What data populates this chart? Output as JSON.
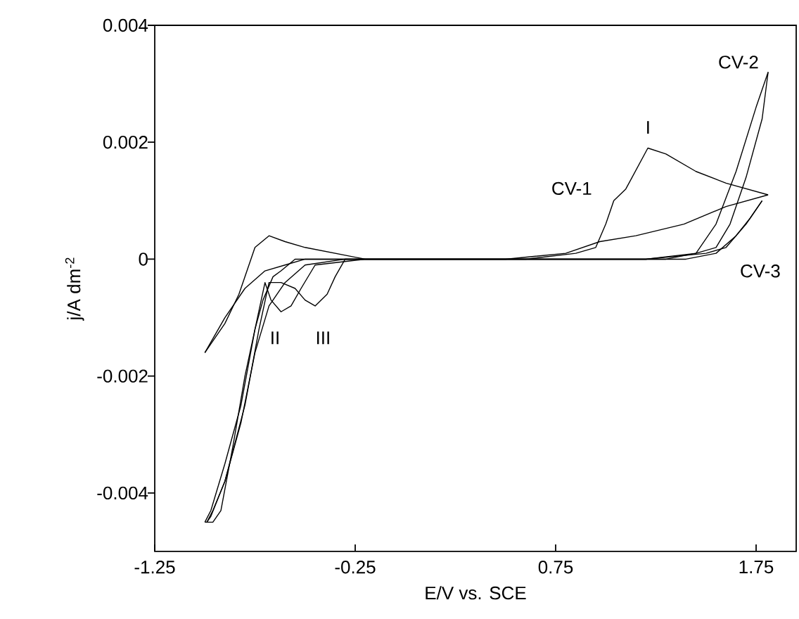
{
  "chart_data": {
    "type": "line",
    "xlabel": "E/V vs. SCE",
    "ylabel": "j/A dm$^{-2}$",
    "xlim": [
      -1.25,
      1.95
    ],
    "ylim": [
      -0.005,
      0.004
    ],
    "xticks": [
      -1.25,
      -0.25,
      0.75,
      1.75
    ],
    "yticks": [
      -0.004,
      -0.002,
      0,
      0.002,
      0.004
    ],
    "grid": false,
    "marker": "none",
    "line_style": "solid",
    "series": [
      {
        "color": "#000000",
        "x": [
          -1.0,
          -0.9,
          -0.83,
          -0.75,
          -0.68,
          -0.6,
          -0.5,
          -0.35,
          -0.2,
          0,
          0.3,
          0.6,
          0.85,
          0.95,
          1.0,
          1.04,
          1.1,
          1.21,
          1.3,
          1.45,
          1.6,
          1.81
        ],
        "values": [
          -0.0016,
          -0.0011,
          -0.0006,
          0.0002,
          0.0004,
          0.0003,
          0.0002,
          0.0001,
          0,
          0,
          0,
          0,
          0.0001,
          0.0002,
          0.0006,
          0.001,
          0.0012,
          0.0019,
          0.0018,
          0.0015,
          0.0013,
          0.0011
        ]
      },
      {
        "color": "#000000",
        "x": [
          -1.0,
          -0.9,
          -0.8,
          -0.7,
          -0.6,
          -0.5,
          -0.35,
          -0.1,
          0.2,
          0.5,
          0.8,
          0.97,
          1.15,
          1.39,
          1.6,
          1.81
        ],
        "values": [
          -0.0016,
          -0.001,
          -0.0005,
          -0.0002,
          -0.0001,
          0,
          0,
          0,
          0,
          0,
          0.0001,
          0.0003,
          0.0004,
          0.0006,
          0.0009,
          0.0011
        ]
      },
      {
        "color": "#000000",
        "x": [
          -1.0,
          -0.96,
          -0.92,
          -0.86,
          -0.8,
          -0.75,
          -0.71,
          -0.66,
          -0.62,
          -0.55,
          -0.45,
          -0.2,
          0,
          0.5,
          1.0,
          1.3,
          1.45,
          1.55,
          1.65,
          1.75,
          1.81
        ],
        "values": [
          -0.0045,
          -0.0045,
          -0.0043,
          -0.0032,
          -0.002,
          -0.0012,
          -0.0007,
          -0.0003,
          -0.0002,
          0,
          0,
          0,
          0,
          0,
          0,
          0,
          0.0001,
          0.0006,
          0.0015,
          0.0026,
          0.0032
        ]
      },
      {
        "color": "#000000",
        "x": [
          -1.0,
          -0.97,
          -0.9,
          -0.82,
          -0.75,
          -0.7,
          -0.67,
          -0.62,
          -0.57,
          -0.52,
          -0.45,
          -0.2,
          0.3,
          0.8,
          1.2,
          1.45,
          1.55,
          1.62,
          1.7,
          1.78,
          1.81
        ],
        "values": [
          -0.0045,
          -0.0043,
          -0.0035,
          -0.0025,
          -0.0012,
          -0.0004,
          -0.0007,
          -0.0009,
          -0.0008,
          -0.0005,
          -0.0001,
          0,
          0,
          0,
          0,
          0.0001,
          0.0002,
          0.0006,
          0.0014,
          0.0024,
          0.0032
        ]
      },
      {
        "color": "#000000",
        "x": [
          -0.99,
          -0.96,
          -0.9,
          -0.82,
          -0.75,
          -0.68,
          -0.6,
          -0.5,
          -0.3,
          0,
          0.5,
          1.0,
          1.4,
          1.55,
          1.65,
          1.72,
          1.78
        ],
        "values": [
          -0.0045,
          -0.0043,
          -0.0038,
          -0.0028,
          -0.0016,
          -0.0008,
          -0.0004,
          -0.0001,
          0,
          0,
          0,
          0,
          0,
          0.0001,
          0.0004,
          0.0007,
          0.001
        ]
      },
      {
        "color": "#000000",
        "x": [
          -0.99,
          -0.97,
          -0.9,
          -0.8,
          -0.73,
          -0.68,
          -0.62,
          -0.55,
          -0.5,
          -0.45,
          -0.39,
          -0.35,
          -0.3,
          -0.2,
          0.3,
          0.8,
          1.2,
          1.5,
          1.6,
          1.7,
          1.78
        ],
        "values": [
          -0.0045,
          -0.0044,
          -0.0038,
          -0.0025,
          -0.0012,
          -0.0004,
          -0.0004,
          -0.0005,
          -0.0007,
          -0.0008,
          -0.0006,
          -0.0003,
          0,
          0,
          0,
          0,
          0,
          0.0001,
          0.0002,
          0.0006,
          0.001
        ]
      }
    ],
    "annotations": [
      "CV-1",
      "CV-2",
      "CV-3",
      "I",
      "II",
      "III"
    ]
  }
}
